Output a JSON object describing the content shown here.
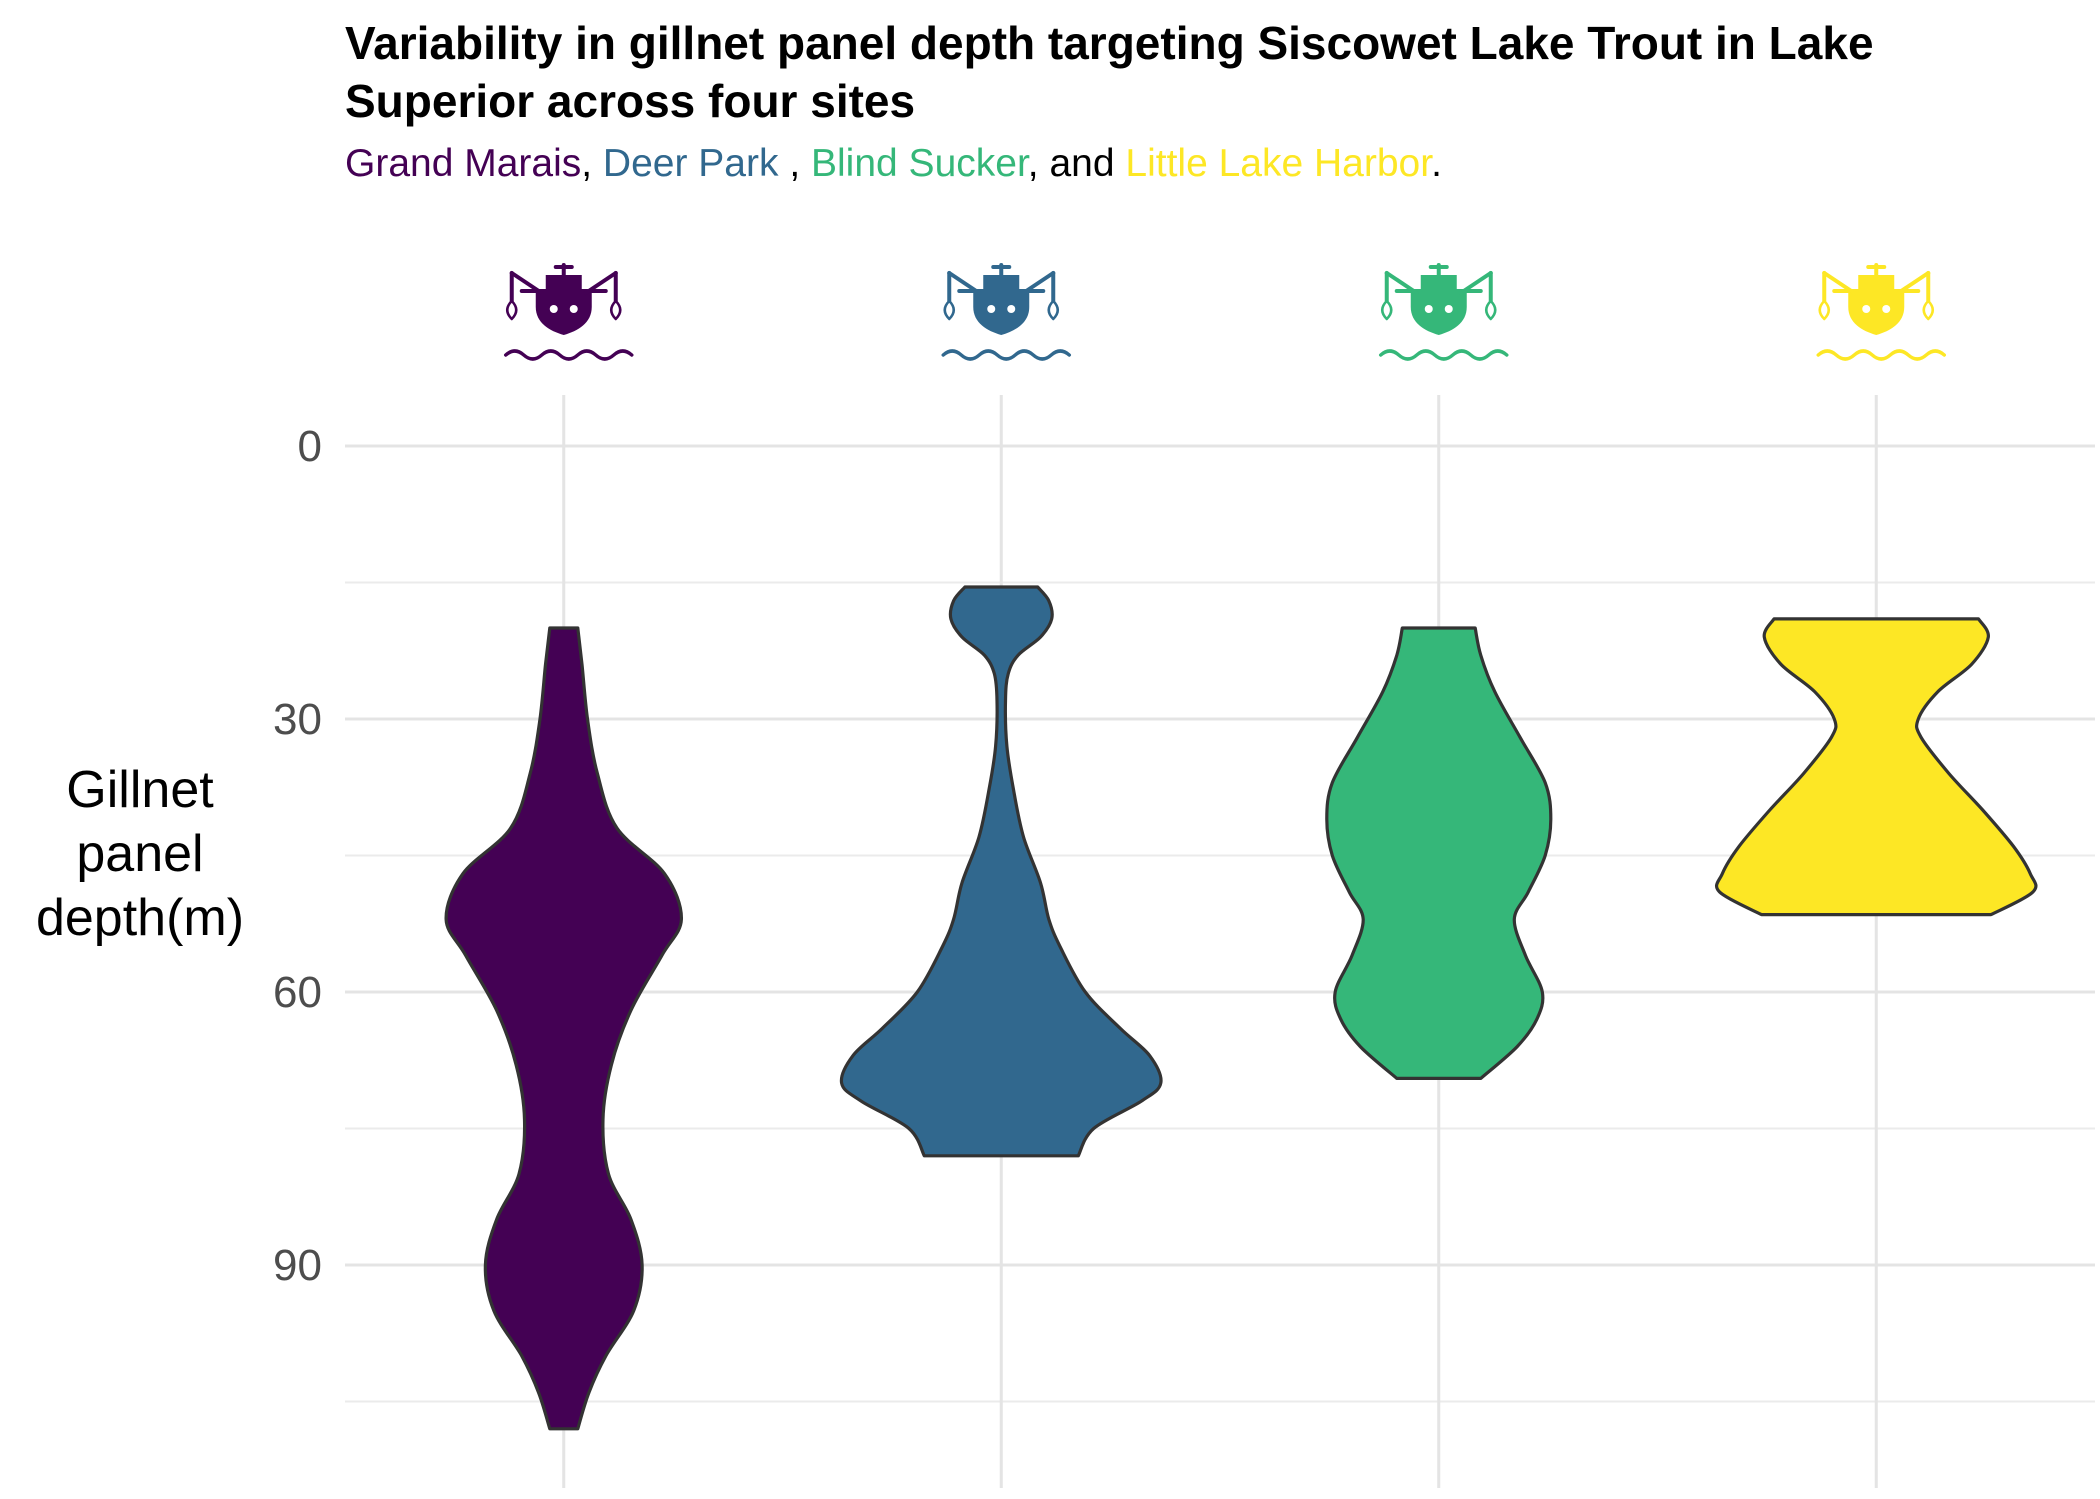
{
  "chart_data": {
    "type": "violin",
    "title": "Variability in gillnet panel depth targeting Siscowet Lake Trout in Lake Superior across four sites",
    "subtitle": {
      "sites": [
        "Grand Marais",
        "Deer Park",
        "Blind Sucker",
        "Little Lake Harbor"
      ],
      "sep1": ", ",
      "sep2": " , ",
      "sep3": ", and ",
      "end": "."
    },
    "ylabel": "Gillnet panel depth(m)",
    "ylabel_lines": [
      "Gillnet",
      "panel",
      "depth(m)"
    ],
    "y_reversed": true,
    "ylim": [
      -3,
      115
    ],
    "yticks": [
      0,
      30,
      60,
      90
    ],
    "yticks_minor": [
      15,
      45,
      75,
      105
    ],
    "grid": true,
    "legend": "none",
    "site_icon": "fishing-boat-icon",
    "series": [
      {
        "name": "Grand Marais",
        "color": "#440154",
        "min": 20,
        "max": 108,
        "profile": [
          [
            20,
            0.1
          ],
          [
            24,
            0.13
          ],
          [
            30,
            0.17
          ],
          [
            36,
            0.24
          ],
          [
            42,
            0.38
          ],
          [
            47,
            0.72
          ],
          [
            52,
            0.84
          ],
          [
            56,
            0.7
          ],
          [
            62,
            0.48
          ],
          [
            68,
            0.34
          ],
          [
            74,
            0.28
          ],
          [
            80,
            0.32
          ],
          [
            85,
            0.48
          ],
          [
            90,
            0.56
          ],
          [
            95,
            0.5
          ],
          [
            100,
            0.3
          ],
          [
            104,
            0.18
          ],
          [
            108,
            0.1
          ]
        ]
      },
      {
        "name": "Deer Park",
        "color": "#31688e",
        "min": 15.5,
        "max": 78,
        "profile": [
          [
            15.5,
            0.26
          ],
          [
            17,
            0.34
          ],
          [
            19,
            0.36
          ],
          [
            21,
            0.28
          ],
          [
            23,
            0.12
          ],
          [
            25,
            0.05
          ],
          [
            28,
            0.03
          ],
          [
            33,
            0.04
          ],
          [
            38,
            0.09
          ],
          [
            43,
            0.16
          ],
          [
            48,
            0.28
          ],
          [
            52,
            0.34
          ],
          [
            55,
            0.42
          ],
          [
            60,
            0.6
          ],
          [
            64,
            0.85
          ],
          [
            67,
            1.06
          ],
          [
            70,
            1.14
          ],
          [
            72,
            1.0
          ],
          [
            75,
            0.66
          ],
          [
            78,
            0.55
          ]
        ]
      },
      {
        "name": "Blind Sucker",
        "color": "#35b779",
        "min": 20,
        "max": 69.5,
        "profile": [
          [
            20,
            0.26
          ],
          [
            23,
            0.3
          ],
          [
            27,
            0.4
          ],
          [
            32,
            0.58
          ],
          [
            37,
            0.76
          ],
          [
            41,
            0.8
          ],
          [
            45,
            0.76
          ],
          [
            49,
            0.64
          ],
          [
            52,
            0.54
          ],
          [
            56,
            0.62
          ],
          [
            60,
            0.74
          ],
          [
            63,
            0.7
          ],
          [
            66,
            0.56
          ],
          [
            69.5,
            0.3
          ]
        ]
      },
      {
        "name": "Little Lake Harbor",
        "color": "#fde725",
        "min": 19,
        "max": 51.5,
        "profile": [
          [
            19,
            0.73
          ],
          [
            21,
            0.8
          ],
          [
            24,
            0.68
          ],
          [
            27,
            0.44
          ],
          [
            30,
            0.3
          ],
          [
            32,
            0.32
          ],
          [
            36,
            0.52
          ],
          [
            40,
            0.76
          ],
          [
            44,
            0.98
          ],
          [
            47,
            1.1
          ],
          [
            49,
            1.12
          ],
          [
            51.5,
            0.82
          ]
        ]
      }
    ]
  }
}
